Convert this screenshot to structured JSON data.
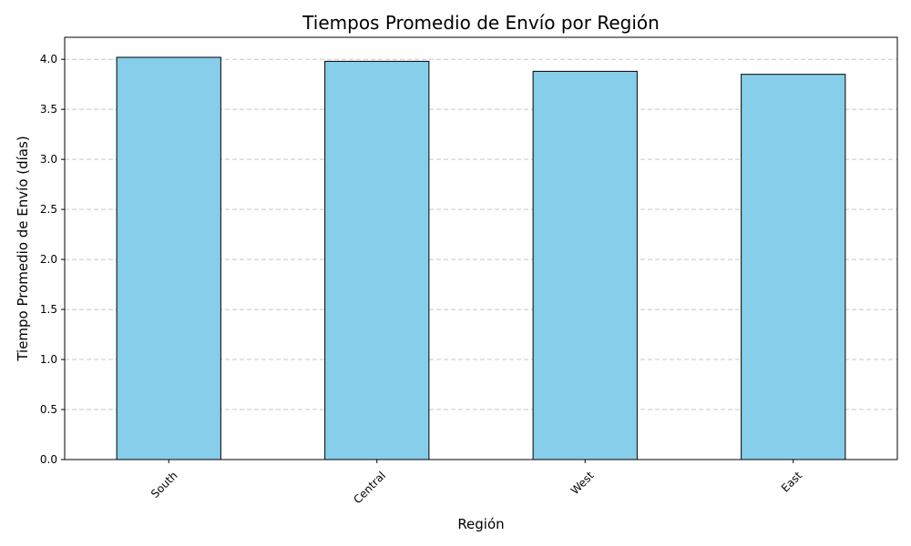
{
  "chart_data": {
    "type": "bar",
    "title": "Tiempos Promedio de Envío por Región",
    "xlabel": "Región",
    "ylabel": "Tiempo Promedio de Envío (días)",
    "categories": [
      "South",
      "Central",
      "West",
      "East"
    ],
    "values": [
      4.02,
      3.98,
      3.88,
      3.85
    ],
    "ylim": [
      0,
      4.22
    ],
    "yticks": [
      0.0,
      0.5,
      1.0,
      1.5,
      2.0,
      2.5,
      3.0,
      3.5,
      4.0
    ],
    "ytick_labels": [
      "0.0",
      "0.5",
      "1.0",
      "1.5",
      "2.0",
      "2.5",
      "3.0",
      "3.5",
      "4.0"
    ],
    "x_tick_rotation": 45,
    "grid": {
      "y": true,
      "x": false,
      "style": "dashed"
    },
    "colors": {
      "bar_fill": "#87CEEB",
      "bar_edge": "#000000",
      "grid": "#c8c8c8",
      "axis": "#000000"
    }
  }
}
